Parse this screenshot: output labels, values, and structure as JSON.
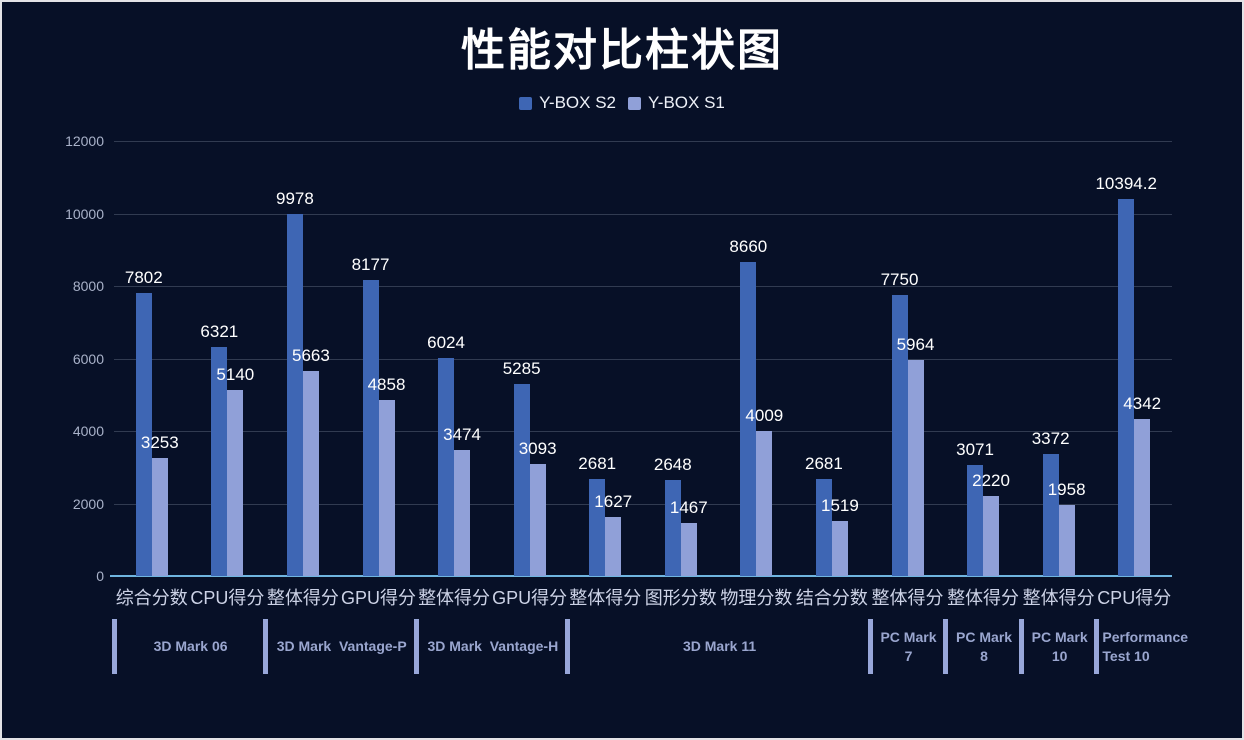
{
  "chart_data": {
    "type": "bar",
    "title": "性能对比柱状图",
    "categories": [
      "综合分数",
      "CPU得分",
      "整体得分",
      "GPU得分",
      "整体得分",
      "GPU得分",
      "整体得分",
      "图形分数",
      "物理分数",
      "结合分数",
      "整体得分",
      "整体得分",
      "整体得分",
      "CPU得分"
    ],
    "series": [
      {
        "name": "Y-BOX S2",
        "color": "#3e66b4",
        "values": [
          7802,
          6321,
          9978,
          8177,
          6024,
          5285,
          2681,
          2648,
          8660,
          2681,
          7750,
          3071,
          3372,
          10394.2
        ]
      },
      {
        "name": "Y-BOX S1",
        "color": "#90a0d8",
        "values": [
          3253,
          5140,
          5663,
          4858,
          3474,
          3093,
          1627,
          1467,
          4009,
          1519,
          5964,
          2220,
          1958,
          4342
        ]
      }
    ],
    "groups": [
      {
        "label": "3D Mark 06",
        "span": 2
      },
      {
        "label": "3D Mark  Vantage-P",
        "span": 2
      },
      {
        "label": "3D Mark  Vantage-H",
        "span": 2
      },
      {
        "label": "3D Mark 11",
        "span": 4
      },
      {
        "label": "PC Mark 7",
        "span": 1
      },
      {
        "label": "PC Mark 8",
        "span": 1
      },
      {
        "label": "PC Mark 10",
        "span": 1
      },
      {
        "label": "Performance Test 10",
        "span": 1
      }
    ],
    "y_ticks": [
      0,
      2000,
      4000,
      6000,
      8000,
      10000,
      12000
    ],
    "ylim": [
      0,
      12000
    ],
    "grid": true,
    "legend_position": "top",
    "colors": {
      "background": "#071027",
      "axis_line": "#6fb5e0",
      "value_label": "#ffffff",
      "tick_label": "#a9b2c9",
      "category_label": "#ccd2e6",
      "group_label": "#9aa6cf",
      "group_divider": "#98a7da"
    }
  }
}
